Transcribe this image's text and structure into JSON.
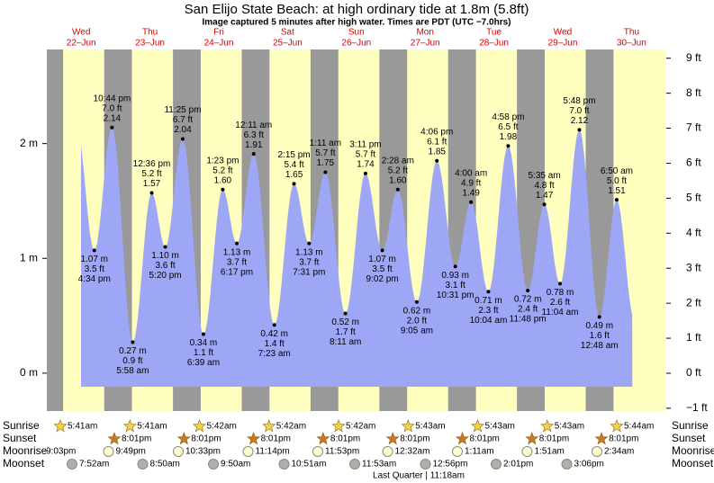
{
  "chart_data": {
    "type": "area",
    "title": "San Elijo State Beach: at high  ordinary tide at 1.8m (5.8ft)",
    "subtitle": "Image captured 5 minutes after high water. Times are PDT (UTC −7.0hrs)",
    "day_names": [
      "Wed",
      "Thu",
      "Fri",
      "Sat",
      "Sun",
      "Mon",
      "Tue",
      "Wed",
      "Thu"
    ],
    "dates": [
      "22–Jun",
      "23–Jun",
      "24–Jun",
      "25–Jun",
      "26–Jun",
      "27–Jun",
      "28–Jun",
      "29–Jun",
      "30–Jun"
    ],
    "x": [
      "4:34 pm",
      "10:44 pm",
      "5:58 am",
      "12:36 pm",
      "5:20 pm",
      "11:25 pm",
      "6:39 am",
      "1:23 pm",
      "6:17 pm",
      "12:11 am",
      "7:23 am",
      "2:15 pm",
      "7:31 pm",
      "1:11 am",
      "8:11 am",
      "3:11 pm",
      "9:02 pm",
      "2:28 am",
      "9:05 am",
      "4:06 pm",
      "10:31 pm",
      "4:00 am",
      "10:04 am",
      "4:58 pm",
      "11:48 pm",
      "5:35 am",
      "11:04 am",
      "5:48 pm",
      "12:48 am",
      "6:50 am"
    ],
    "values": [
      1.07,
      2.14,
      0.27,
      1.57,
      1.1,
      2.04,
      0.34,
      1.6,
      1.13,
      1.91,
      0.42,
      1.65,
      1.13,
      1.75,
      0.52,
      1.74,
      1.07,
      1.6,
      0.62,
      1.85,
      0.93,
      1.49,
      0.71,
      1.98,
      0.72,
      1.47,
      0.78,
      2.12,
      0.49,
      1.51
    ],
    "value_labels": [
      "1.07 m",
      "2.14",
      "0.27 m",
      "1.57",
      "1.10 m",
      "2.04",
      "0.34 m",
      "1.60",
      "1.13 m",
      "1.91",
      "0.42 m",
      "1.65",
      "1.13 m",
      "1.75",
      "0.52 m",
      "1.74",
      "1.07 m",
      "1.60",
      "0.62 m",
      "1.85",
      "0.93 m",
      "1.49",
      "0.71 m",
      "1.98",
      "0.72 m",
      "1.47",
      "0.78 m",
      "2.12",
      "0.49 m",
      "1.51"
    ],
    "ft_values": [
      3.5,
      7.0,
      0.9,
      5.2,
      3.6,
      6.7,
      1.1,
      5.2,
      3.7,
      6.3,
      1.4,
      5.4,
      3.7,
      5.7,
      1.7,
      5.7,
      3.5,
      5.2,
      2.0,
      6.1,
      3.1,
      4.9,
      2.3,
      6.5,
      2.4,
      4.8,
      2.6,
      7.0,
      1.6,
      5.0
    ],
    "ft_labels": [
      "3.5 ft",
      "7.0 ft",
      "0.9 ft",
      "5.2 ft",
      "3.6 ft",
      "6.7 ft",
      "1.1 ft",
      "5.2 ft",
      "3.7 ft",
      "6.3 ft",
      "1.4 ft",
      "5.4 ft",
      "3.7 ft",
      "5.7 ft",
      "1.7 ft",
      "5.7 ft",
      "3.5 ft",
      "5.2 ft",
      "2.0 ft",
      "6.1 ft",
      "3.1 ft",
      "4.9 ft",
      "2.3 ft",
      "6.5 ft",
      "2.4 ft",
      "4.8 ft",
      "2.6 ft",
      "7.0 ft",
      "1.6 ft",
      "5.0 ft"
    ],
    "color": "#9ea6f6",
    "ylim": [
      -0.33,
      2.82
    ],
    "yticks": [
      {
        "value": 0,
        "label": "0 m"
      },
      {
        "value": 1,
        "label": "1 m"
      },
      {
        "value": 2,
        "label": "2 m"
      }
    ],
    "y2lim": [
      -1.08,
      9.25
    ],
    "y2ticks": [
      {
        "value": -1,
        "label": "−1 ft"
      },
      {
        "value": 0,
        "label": "0 ft"
      },
      {
        "value": 1,
        "label": "1 ft"
      },
      {
        "value": 2,
        "label": "2 ft"
      },
      {
        "value": 3,
        "label": "3 ft"
      },
      {
        "value": 4,
        "label": "4 ft"
      },
      {
        "value": 5,
        "label": "5 ft"
      },
      {
        "value": 6,
        "label": "6 ft"
      },
      {
        "value": 7,
        "label": "7 ft"
      },
      {
        "value": 8,
        "label": "8 ft"
      },
      {
        "value": 9,
        "label": "9 ft"
      }
    ],
    "row_labels": {
      "sunrise": "Sunrise",
      "sunset": "Sunset",
      "moonrise": "Moonrise",
      "moonset": "Moonset"
    },
    "sunrise": [
      "5:41am",
      "5:41am",
      "5:42am",
      "5:42am",
      "5:42am",
      "5:43am",
      "5:43am",
      "5:43am",
      "5:44am"
    ],
    "sunset": [
      "8:01pm",
      "8:01pm",
      "8:01pm",
      "8:01pm",
      "8:01pm",
      "8:01pm",
      "8:01pm",
      "8:01pm"
    ],
    "moonrise": [
      "9:03pm",
      "9:49pm",
      "10:33pm",
      "11:14pm",
      "11:53pm",
      "12:32am",
      "1:11am",
      "1:51am",
      "2:34am"
    ],
    "moonset": [
      "7:52am",
      "8:50am",
      "9:50am",
      "10:51am",
      "11:53am",
      "12:56pm",
      "2:01pm",
      "3:06pm"
    ],
    "moon_phase": "Last Quarter | 11:18am"
  }
}
